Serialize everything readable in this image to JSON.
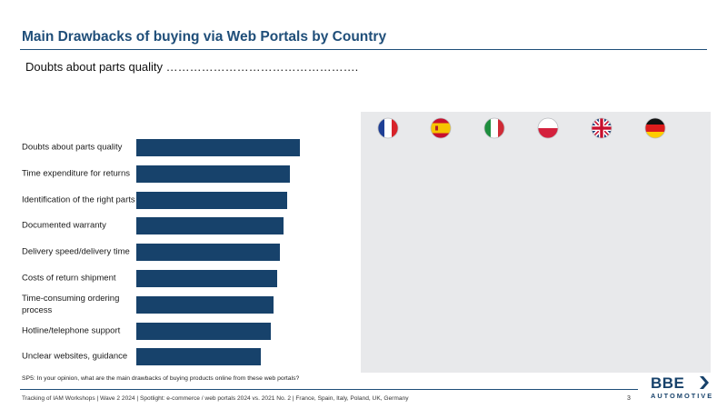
{
  "header": {
    "title": "Main Drawbacks of buying via Web Portals by Country"
  },
  "subtitle": "Doubts about parts quality ………………………………………….",
  "chart_data": {
    "type": "bar",
    "orientation": "horizontal",
    "categories": [
      "Doubts about parts quality",
      "Time expenditure for returns",
      "Identification of the right parts",
      "Documented warranty",
      "Delivery speed/delivery time",
      "Costs of return shipment",
      "Time-consuming ordering process",
      "Hotline/telephone support",
      "Unclear websites, guidance"
    ],
    "values": [
      100,
      94,
      92,
      90,
      88,
      86,
      84,
      82,
      76
    ],
    "xlim": [
      0,
      100
    ],
    "grid": false,
    "bar_color": "#17426b",
    "data_labels": false
  },
  "countries": [
    {
      "name": "France",
      "icon": "france-flag-icon"
    },
    {
      "name": "Spain",
      "icon": "spain-flag-icon"
    },
    {
      "name": "Italy",
      "icon": "italy-flag-icon"
    },
    {
      "name": "Poland",
      "icon": "poland-flag-icon"
    },
    {
      "name": "UK",
      "icon": "uk-flag-icon"
    },
    {
      "name": "Germany",
      "icon": "germany-flag-icon"
    }
  ],
  "footnote": "SP5: In your opinion, what are the main drawbacks of buying products online from these web portals?",
  "footer": {
    "text": "Tracking of IAM Workshops | Wave 2 2024 | Spotlight: e-commerce / web portals 2024 vs. 2021 No. 2 | France, Spain, Italy, Poland, UK, Germany",
    "page": "3"
  },
  "logo": {
    "main": "BBE",
    "sub": "AUTOMOTIVE"
  },
  "colors": {
    "brand": "#1f4e79",
    "bar": "#17426b",
    "panel": "#e8e9eb"
  }
}
